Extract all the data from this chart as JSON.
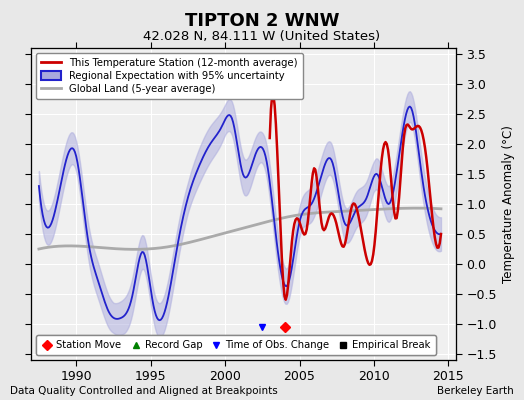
{
  "title": "TIPTON 2 WNW",
  "subtitle": "42.028 N, 84.111 W (United States)",
  "ylabel": "Temperature Anomaly (°C)",
  "xlabel_left": "Data Quality Controlled and Aligned at Breakpoints",
  "xlabel_right": "Berkeley Earth",
  "xlim": [
    1987.0,
    2015.5
  ],
  "ylim": [
    -1.6,
    3.6
  ],
  "yticks": [
    -1.5,
    -1.0,
    -0.5,
    0.0,
    0.5,
    1.0,
    1.5,
    2.0,
    2.5,
    3.0,
    3.5
  ],
  "xticks": [
    1990,
    1995,
    2000,
    2005,
    2010,
    2015
  ],
  "bg_color": "#e8e8e8",
  "plot_bg_color": "#f0f0f0",
  "grid_color": "#ffffff",
  "station_move_x": 2004.0,
  "station_move_y": -1.05,
  "time_obs_change_x": 2002.5,
  "time_obs_change_y": -1.05,
  "legend1_labels": [
    "This Temperature Station (12-month average)",
    "Regional Expectation with 95% uncertainty",
    "Global Land (5-year average)"
  ],
  "legend2_labels": [
    "Station Move",
    "Record Gap",
    "Time of Obs. Change",
    "Empirical Break"
  ],
  "line_colors": {
    "station": "#cc0000",
    "regional": "#2222cc",
    "global": "#aaaaaa"
  },
  "uncertainty_color": "#aaaacc"
}
